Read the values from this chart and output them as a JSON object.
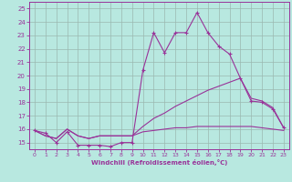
{
  "xlabel": "Windchill (Refroidissement éolien,°C)",
  "xlim": [
    -0.5,
    23.5
  ],
  "ylim": [
    14.5,
    25.5
  ],
  "yticks": [
    15,
    16,
    17,
    18,
    19,
    20,
    21,
    22,
    23,
    24,
    25
  ],
  "xticks": [
    0,
    1,
    2,
    3,
    4,
    5,
    6,
    7,
    8,
    9,
    10,
    11,
    12,
    13,
    14,
    15,
    16,
    17,
    18,
    19,
    20,
    21,
    22,
    23
  ],
  "bg_color": "#b8e8e0",
  "grid_color": "#9ab8b0",
  "line_color": "#993399",
  "line1_x": [
    0,
    1,
    2,
    3,
    4,
    5,
    6,
    7,
    8,
    9,
    10,
    11,
    12,
    13,
    14,
    15,
    16,
    17,
    18,
    19,
    20,
    21,
    22,
    23
  ],
  "line1_y": [
    15.9,
    15.7,
    15.0,
    15.8,
    14.8,
    14.8,
    14.8,
    14.7,
    15.0,
    15.0,
    20.4,
    23.2,
    21.7,
    23.2,
    23.2,
    24.7,
    23.2,
    22.2,
    21.6,
    19.8,
    18.1,
    18.0,
    17.5,
    16.1
  ],
  "line2_x": [
    0,
    1,
    2,
    3,
    4,
    5,
    6,
    7,
    8,
    9,
    10,
    11,
    12,
    13,
    14,
    15,
    16,
    17,
    18,
    19,
    20,
    21,
    22,
    23
  ],
  "line2_y": [
    15.9,
    15.5,
    15.3,
    16.0,
    15.5,
    15.3,
    15.5,
    15.5,
    15.5,
    15.5,
    16.2,
    16.8,
    17.2,
    17.7,
    18.1,
    18.5,
    18.9,
    19.2,
    19.5,
    19.8,
    18.3,
    18.1,
    17.6,
    16.1
  ],
  "line3_x": [
    0,
    1,
    2,
    3,
    4,
    5,
    6,
    7,
    8,
    9,
    10,
    11,
    12,
    13,
    14,
    15,
    16,
    17,
    18,
    19,
    20,
    21,
    22,
    23
  ],
  "line3_y": [
    15.9,
    15.5,
    15.3,
    16.0,
    15.5,
    15.3,
    15.5,
    15.5,
    15.5,
    15.5,
    15.8,
    15.9,
    16.0,
    16.1,
    16.1,
    16.2,
    16.2,
    16.2,
    16.2,
    16.2,
    16.2,
    16.1,
    16.0,
    15.9
  ]
}
